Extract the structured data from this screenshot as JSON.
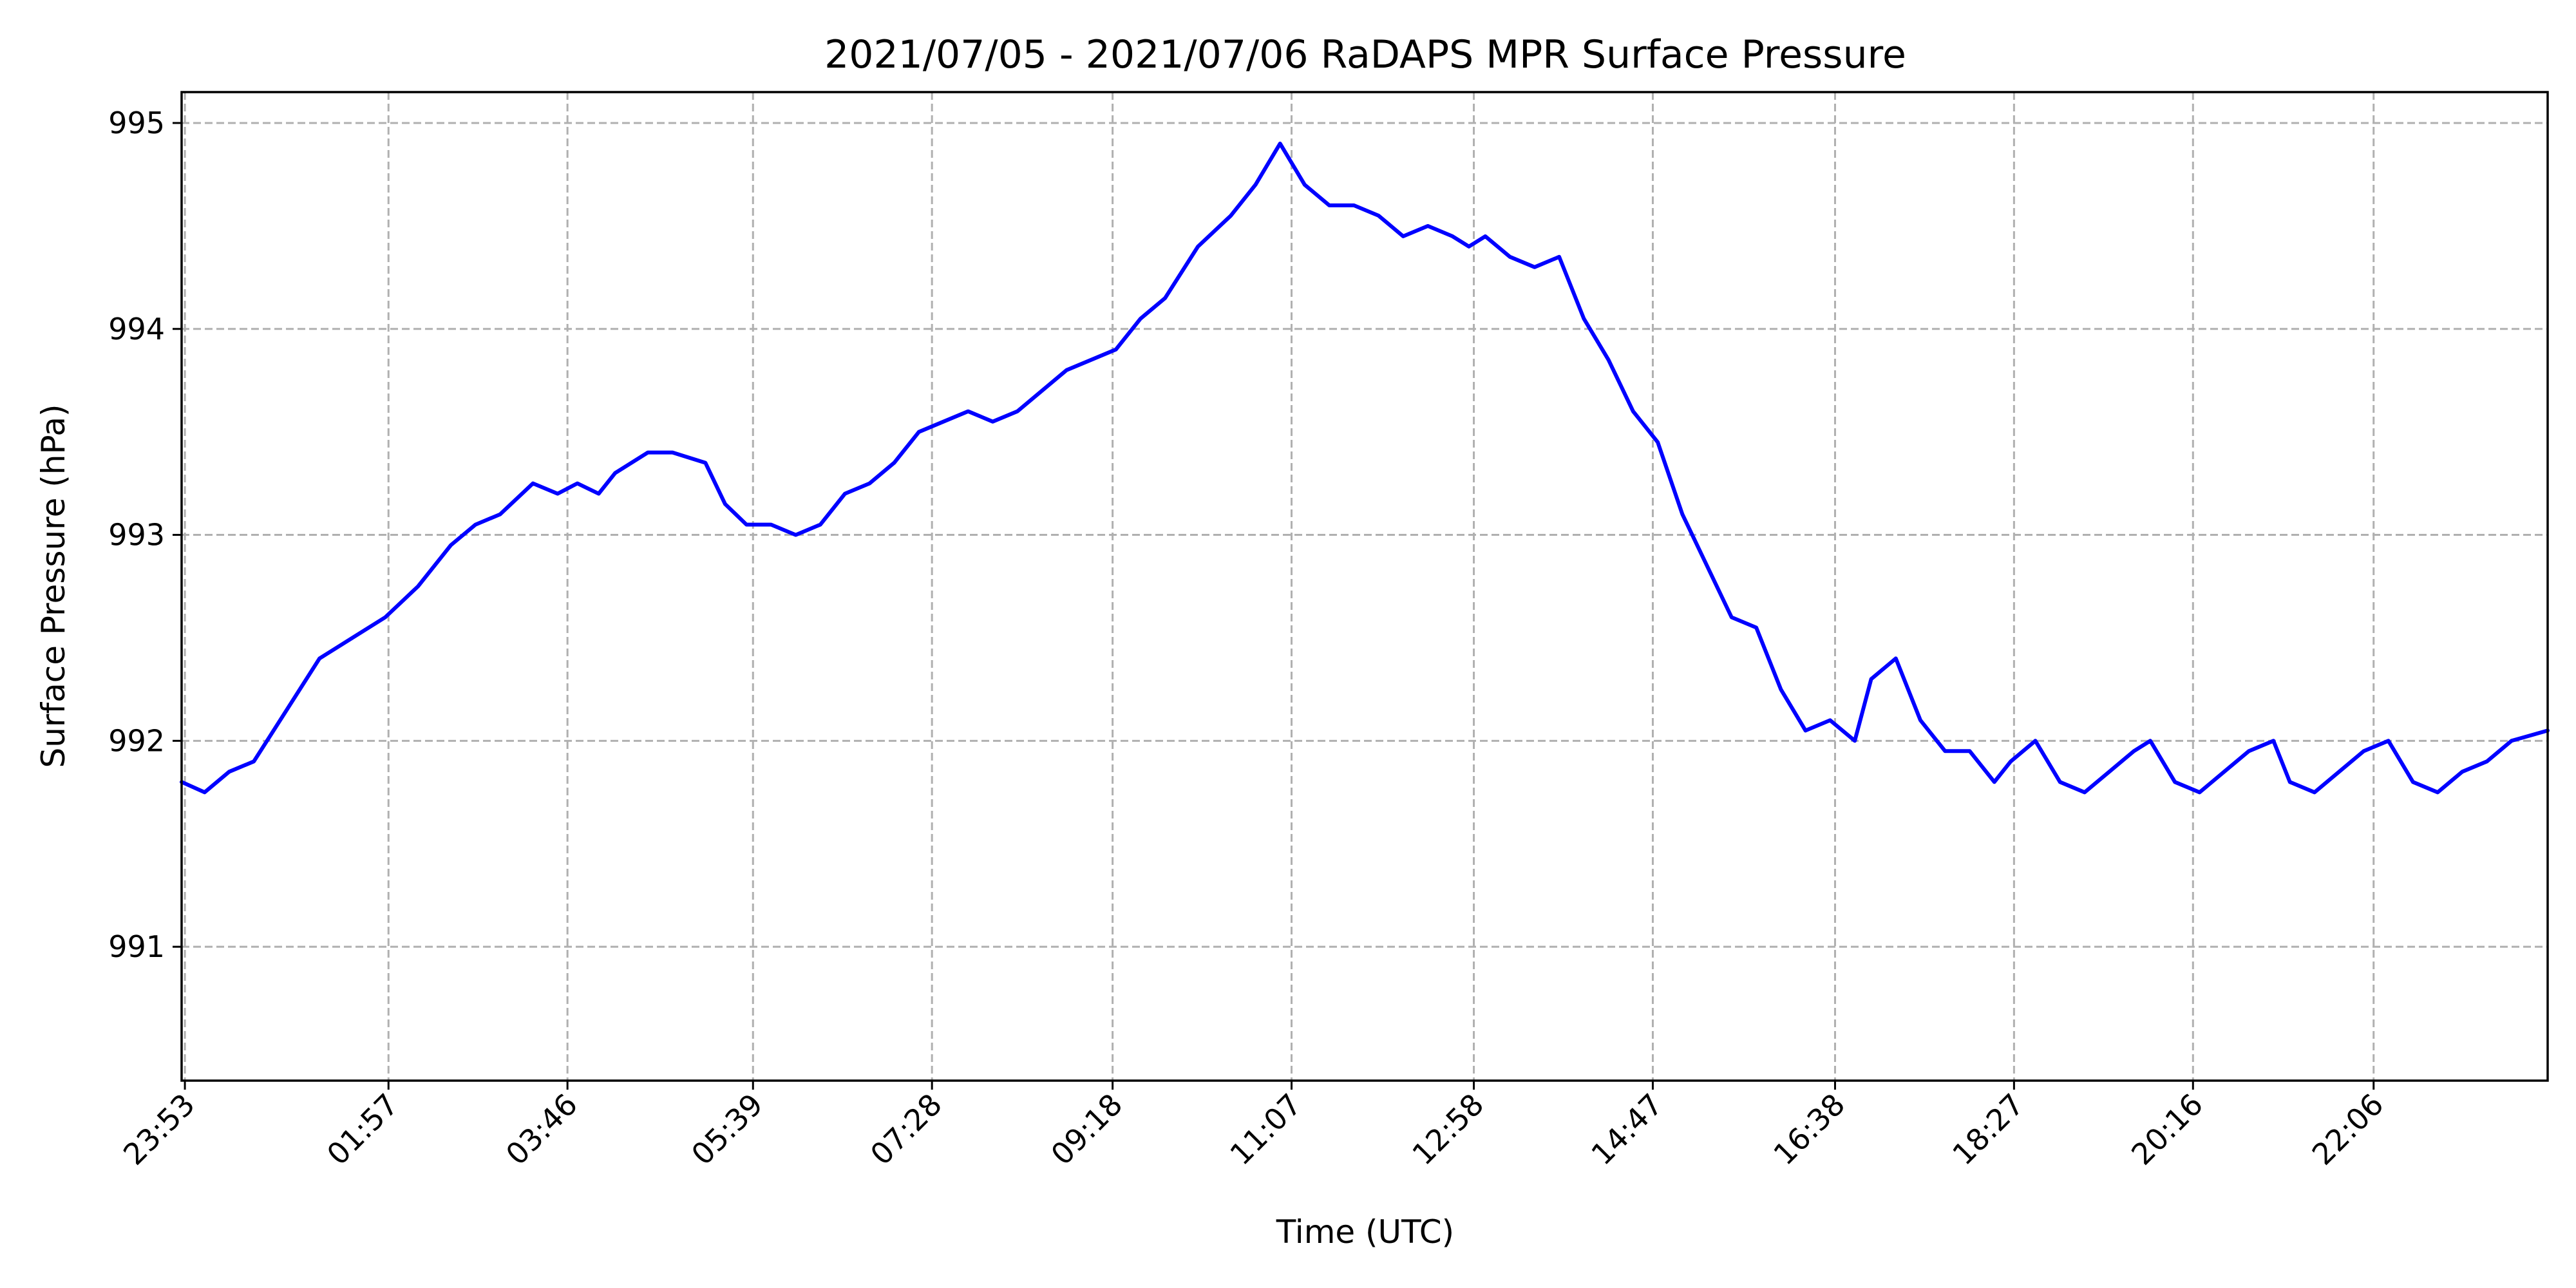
{
  "chart_data": {
    "type": "line",
    "title": "2021/07/05 - 2021/07/06 RaDAPS MPR Surface Pressure",
    "xlabel": "Time (UTC)",
    "ylabel": "Surface Pressure (hPa)",
    "x_tick_labels": [
      "23:53",
      "01:57",
      "03:46",
      "05:39",
      "07:28",
      "09:18",
      "11:07",
      "12:58",
      "14:47",
      "16:38",
      "18:27",
      "20:16",
      "22:06"
    ],
    "x_tick_minutes": [
      1433,
      1557,
      1666,
      1779,
      1888,
      1998,
      2107,
      2218,
      2327,
      2438,
      2547,
      2656,
      2766
    ],
    "xlim_minutes": [
      1431,
      2872
    ],
    "y_ticks": [
      991,
      992,
      993,
      994,
      995
    ],
    "y_tick_labels": [
      "991",
      "992",
      "993",
      "994",
      "995"
    ],
    "ylim": [
      990.35,
      995.15
    ],
    "grid": true,
    "series": [
      {
        "color": "#0000ff",
        "x_minutes": [
          1431,
          1445,
          1460,
          1475,
          1495,
          1515,
          1535,
          1555,
          1575,
          1595,
          1610,
          1625,
          1645,
          1660,
          1672,
          1685,
          1695,
          1705,
          1715,
          1730,
          1750,
          1762,
          1775,
          1790,
          1805,
          1820,
          1835,
          1850,
          1865,
          1880,
          1895,
          1910,
          1925,
          1940,
          1955,
          1970,
          1985,
          2000,
          2015,
          2030,
          2050,
          2070,
          2085,
          2100,
          2115,
          2130,
          2145,
          2160,
          2175,
          2190,
          2205,
          2215,
          2225,
          2240,
          2255,
          2270,
          2285,
          2300,
          2315,
          2330,
          2345,
          2360,
          2375,
          2390,
          2405,
          2420,
          2435,
          2450,
          2460,
          2475,
          2490,
          2505,
          2520,
          2535,
          2545,
          2560,
          2575,
          2590,
          2605,
          2620,
          2630,
          2645,
          2660,
          2675,
          2690,
          2705,
          2715,
          2730,
          2745,
          2760,
          2775,
          2790,
          2805,
          2820,
          2835,
          2850,
          2872
        ],
        "y_values": [
          991.8,
          991.75,
          991.85,
          991.9,
          992.15,
          992.4,
          992.5,
          992.6,
          992.75,
          992.95,
          993.05,
          993.1,
          993.25,
          993.2,
          993.25,
          993.2,
          993.3,
          993.35,
          993.4,
          993.4,
          993.35,
          993.15,
          993.05,
          993.05,
          993.0,
          993.05,
          993.2,
          993.25,
          993.35,
          993.5,
          993.55,
          993.6,
          993.55,
          993.6,
          993.7,
          993.8,
          993.85,
          993.9,
          994.05,
          994.15,
          994.4,
          994.55,
          994.7,
          994.9,
          994.7,
          994.6,
          994.6,
          994.55,
          994.45,
          994.5,
          994.45,
          994.4,
          994.45,
          994.35,
          994.3,
          994.35,
          994.05,
          993.85,
          993.6,
          993.45,
          993.1,
          992.85,
          992.6,
          992.55,
          992.25,
          992.05,
          992.1,
          992.0,
          992.3,
          992.4,
          992.1,
          991.95,
          991.95,
          991.8,
          991.9,
          992.0,
          991.8,
          991.75,
          991.85,
          991.95,
          992.0,
          991.8,
          991.75,
          991.85,
          991.95,
          992.0,
          991.8,
          991.75,
          991.85,
          991.95,
          992.0,
          991.8,
          991.75,
          991.85,
          991.9,
          992.0,
          992.05
        ]
      }
    ]
  }
}
